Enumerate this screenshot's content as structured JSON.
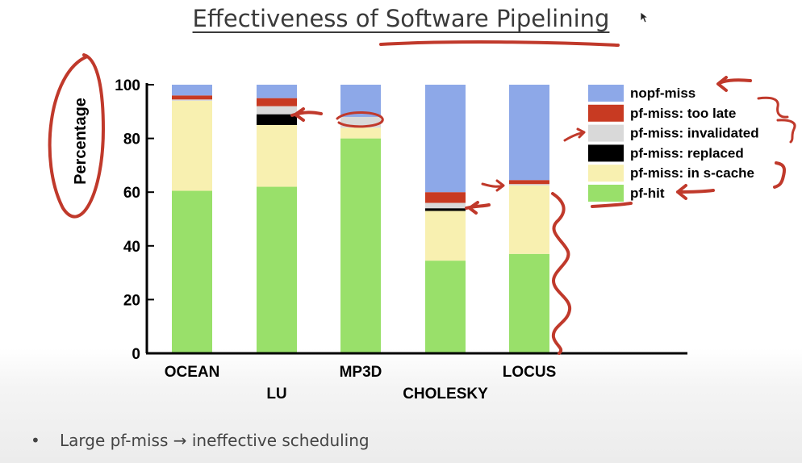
{
  "slide": {
    "title": "Effectiveness of Software Pipelining",
    "bullet_mark": "•",
    "bullet_text": "Large pf-miss → ineffective scheduling"
  },
  "chart_data": {
    "type": "bar",
    "stacked": true,
    "title": "Effectiveness of Software Pipelining",
    "xlabel": "",
    "ylabel": "Percentage",
    "ylim": [
      0,
      100
    ],
    "yticks": [
      0,
      20,
      40,
      60,
      80,
      100
    ],
    "grid": false,
    "legend_position": "right",
    "categories": [
      "OCEAN",
      "LU",
      "MP3D",
      "CHOLESKY",
      "LOCUS"
    ],
    "series": [
      {
        "name": "pf-hit",
        "color": "#99e06a",
        "values": [
          60.5,
          62,
          80,
          34.5,
          37
        ]
      },
      {
        "name": "pf-miss: in s-cache",
        "color": "#f8f0b0",
        "values": [
          33.5,
          23,
          4,
          18.5,
          25.5
        ]
      },
      {
        "name": "pf-miss: replaced",
        "color": "#000000",
        "values": [
          0,
          4,
          0,
          1,
          0
        ]
      },
      {
        "name": "pf-miss: invalidated",
        "color": "#d9d9d9",
        "values": [
          0.5,
          3,
          4,
          2,
          0.5
        ]
      },
      {
        "name": "pf-miss: too late",
        "color": "#c83a22",
        "values": [
          1.5,
          3,
          0,
          4,
          1.5
        ]
      },
      {
        "name": "nopf-miss",
        "color": "#8da8e8",
        "values": [
          4,
          5,
          12,
          40,
          35.5
        ]
      }
    ]
  },
  "colors": {
    "annotation": "#c0392b",
    "axis": "#000000",
    "title_text": "#3a3a3a"
  }
}
